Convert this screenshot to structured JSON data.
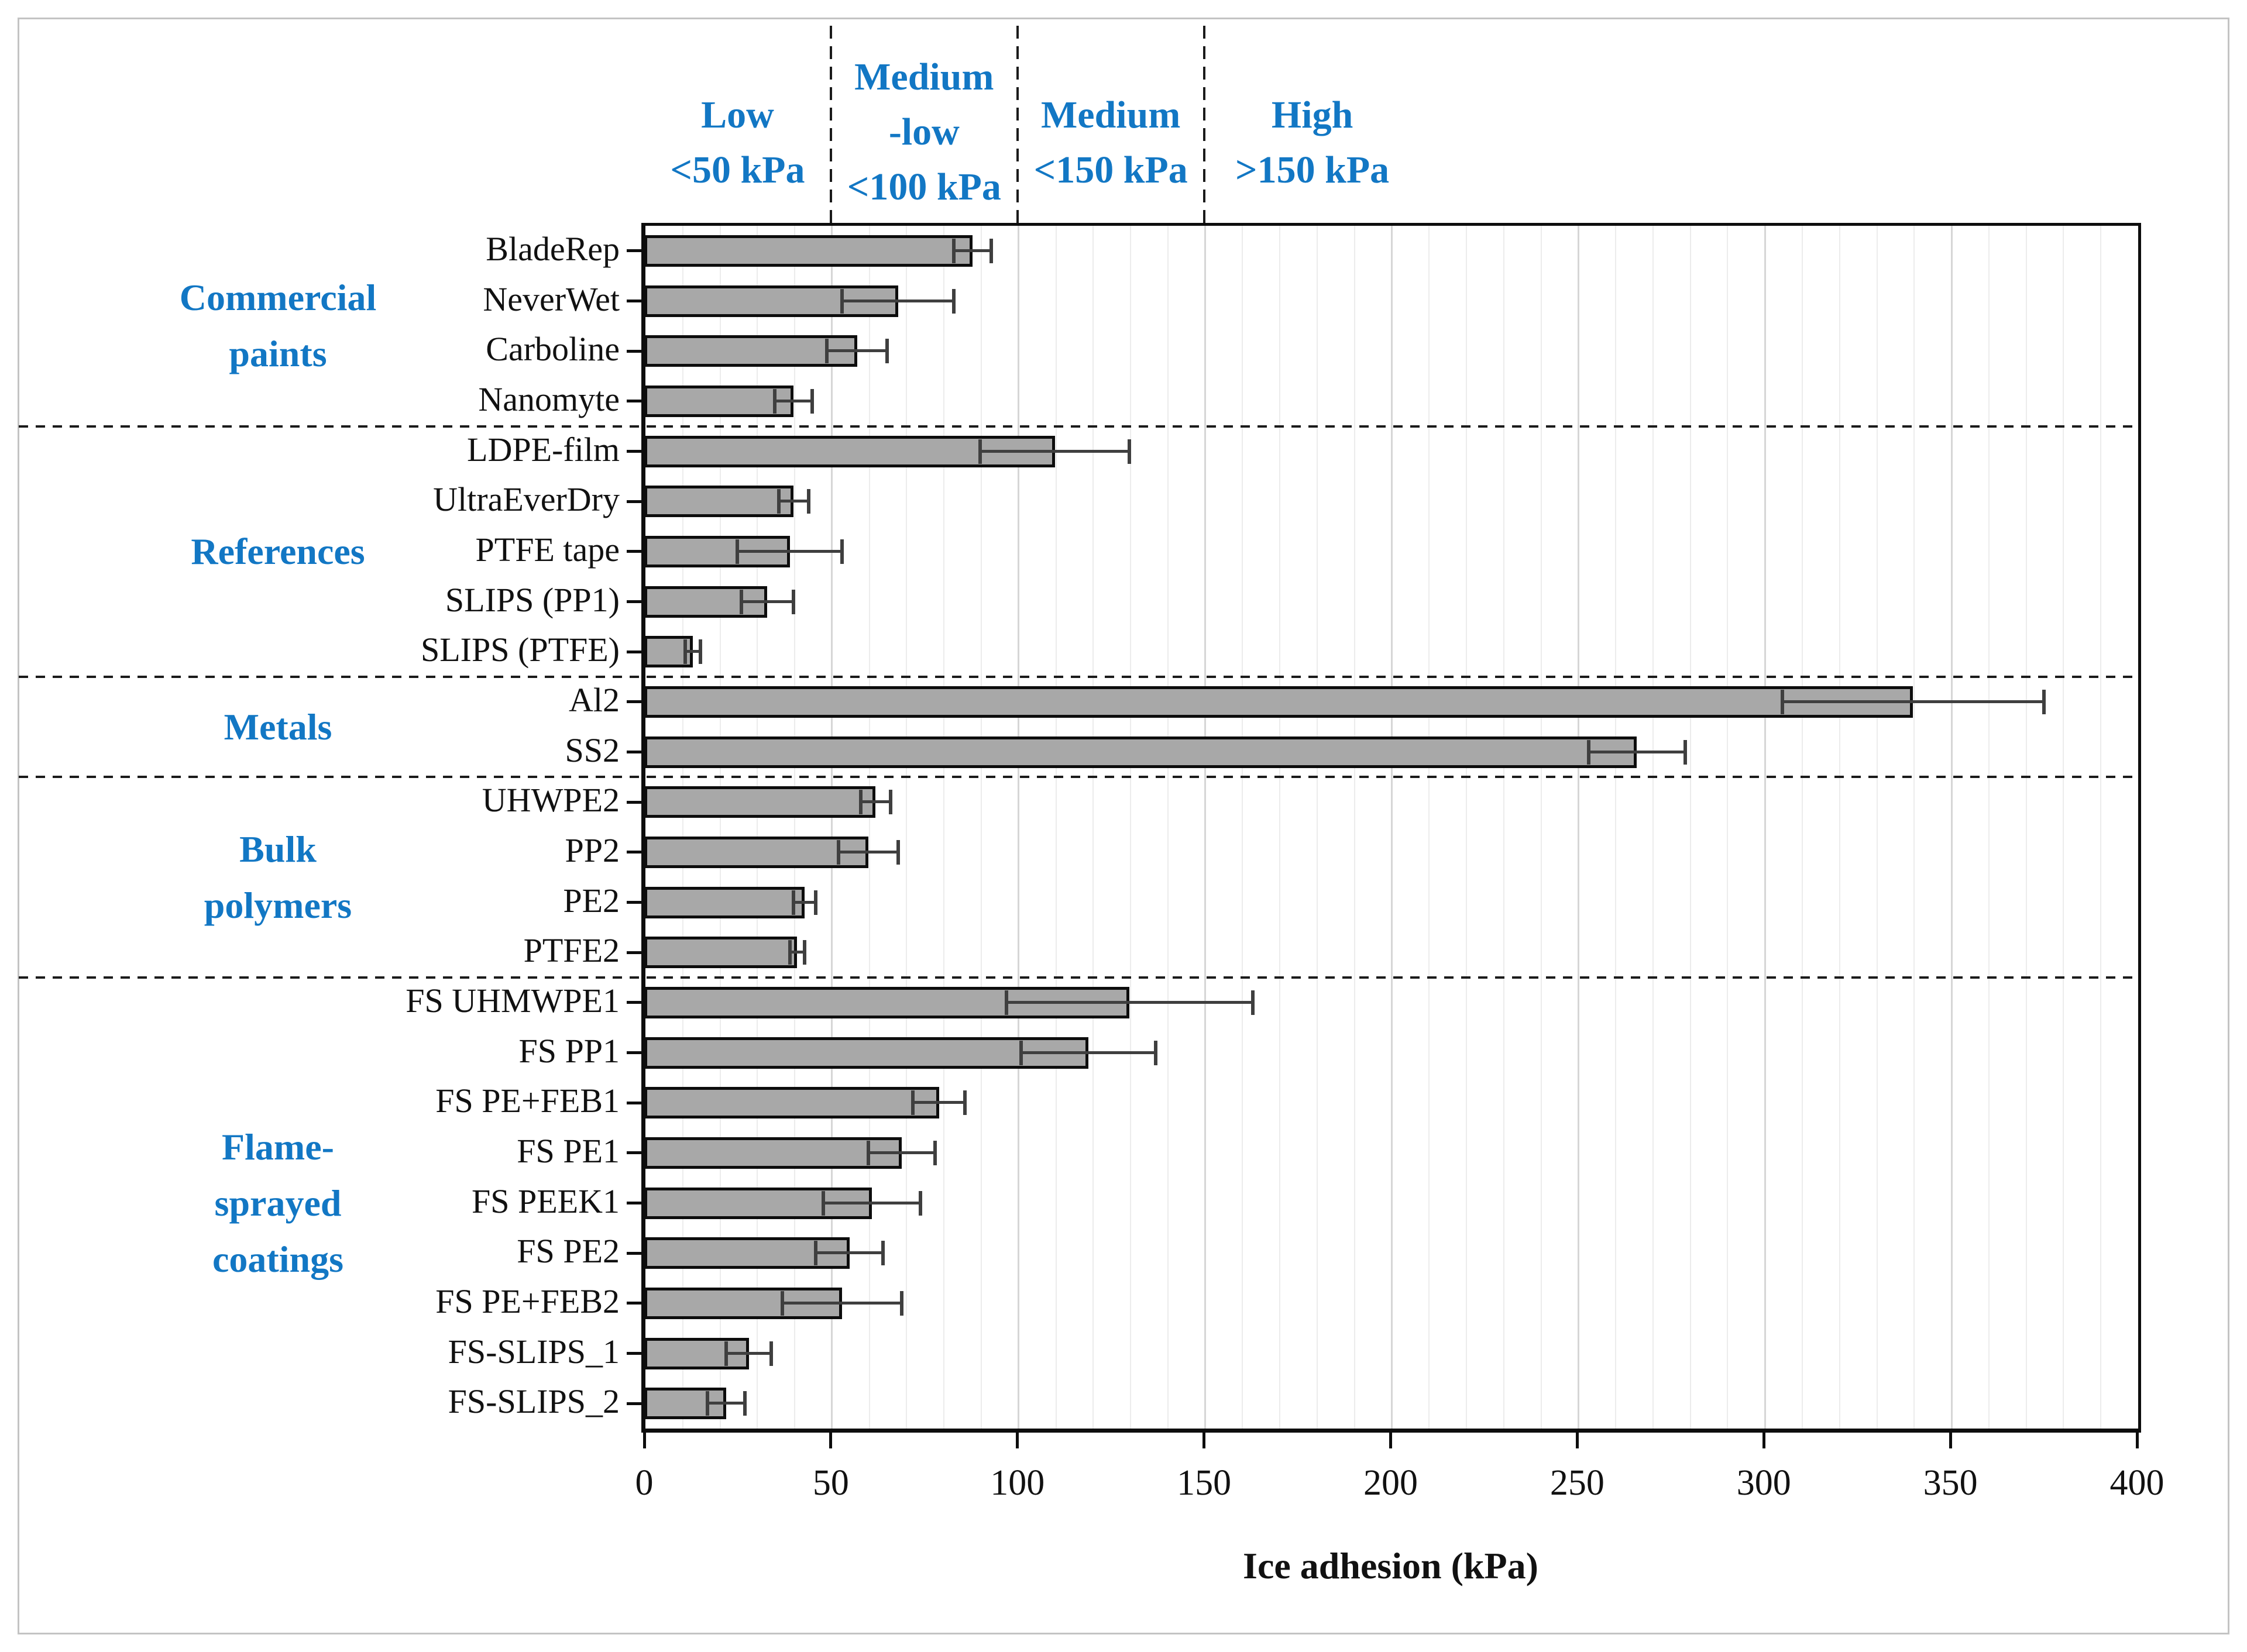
{
  "figure": {
    "background": "#ffffff",
    "frame_border_color": "#c3c3c3"
  },
  "header": {
    "text_color": "#1277c4",
    "zones": [
      {
        "name": "low",
        "lines": [
          "Low",
          "<50 kPa"
        ]
      },
      {
        "name": "medium-low",
        "lines": [
          "Medium",
          "-low",
          "<100 kPa"
        ]
      },
      {
        "name": "medium",
        "lines": [
          "Medium",
          "<150 kPa"
        ]
      },
      {
        "name": "high",
        "lines": [
          "High",
          ">150 kPa"
        ]
      }
    ]
  },
  "chart_data": {
    "type": "bar",
    "orientation": "horizontal",
    "title": "",
    "xlabel": "Ice adhesion (kPa)",
    "xlim": [
      0,
      400
    ],
    "xticks": [
      0,
      50,
      100,
      150,
      200,
      250,
      300,
      350,
      400
    ],
    "minor_grid_step_kpa": 10,
    "grid": true,
    "zone_boundary_lines_kpa": [
      50,
      100,
      150
    ],
    "error_bars": "symmetric, both directions, with caps",
    "colors": {
      "bar_fill": "#a8a8a8",
      "bar_border": "#0d0d0d",
      "error_bar": "#3f3f3f",
      "category_text": "#1277c4",
      "axis_text": "#111111",
      "zone_dash": "#1b1b1b"
    },
    "groups": [
      {
        "label": "Commercial paints",
        "label_lines": [
          "Commercial",
          "paints"
        ],
        "items": [
          {
            "label": "BladeRep",
            "value": 88,
            "error": 5
          },
          {
            "label": "NeverWet",
            "value": 68,
            "error": 15
          },
          {
            "label": "Carboline",
            "value": 57,
            "error": 8
          },
          {
            "label": "Nanomyte",
            "value": 40,
            "error": 5
          }
        ]
      },
      {
        "label": "References",
        "label_lines": [
          "References"
        ],
        "items": [
          {
            "label": "LDPE-film",
            "value": 110,
            "error": 20
          },
          {
            "label": "UltraEverDry",
            "value": 40,
            "error": 4
          },
          {
            "label": "PTFE tape",
            "value": 39,
            "error": 14
          },
          {
            "label": "SLIPS (PP1)",
            "value": 33,
            "error": 7
          },
          {
            "label": "SLIPS (PTFE)",
            "value": 13,
            "error": 2
          }
        ]
      },
      {
        "label": "Metals",
        "label_lines": [
          "Metals"
        ],
        "items": [
          {
            "label": "Al2",
            "value": 340,
            "error": 35
          },
          {
            "label": "SS2",
            "value": 266,
            "error": 13
          }
        ]
      },
      {
        "label": "Bulk polymers",
        "label_lines": [
          "Bulk",
          "polymers"
        ],
        "items": [
          {
            "label": "UHWPE2",
            "value": 62,
            "error": 4
          },
          {
            "label": "PP2",
            "value": 60,
            "error": 8
          },
          {
            "label": "PE2",
            "value": 43,
            "error": 3
          },
          {
            "label": "PTFE2",
            "value": 41,
            "error": 2
          }
        ]
      },
      {
        "label": "Flame-sprayed coatings",
        "label_lines": [
          "Flame-",
          "sprayed",
          "coatings"
        ],
        "items": [
          {
            "label": "FS UHMWPE1",
            "value": 130,
            "error": 33
          },
          {
            "label": "FS PP1",
            "value": 119,
            "error": 18
          },
          {
            "label": "FS PE+FEB1",
            "value": 79,
            "error": 7
          },
          {
            "label": "FS PE1",
            "value": 69,
            "error": 9
          },
          {
            "label": "FS PEEK1",
            "value": 61,
            "error": 13
          },
          {
            "label": "FS PE2",
            "value": 55,
            "error": 9
          },
          {
            "label": "FS PE+FEB2",
            "value": 53,
            "error": 16
          },
          {
            "label": "FS-SLIPS_1",
            "value": 28,
            "error": 6
          },
          {
            "label": "FS-SLIPS_2",
            "value": 22,
            "error": 5
          }
        ]
      }
    ]
  }
}
